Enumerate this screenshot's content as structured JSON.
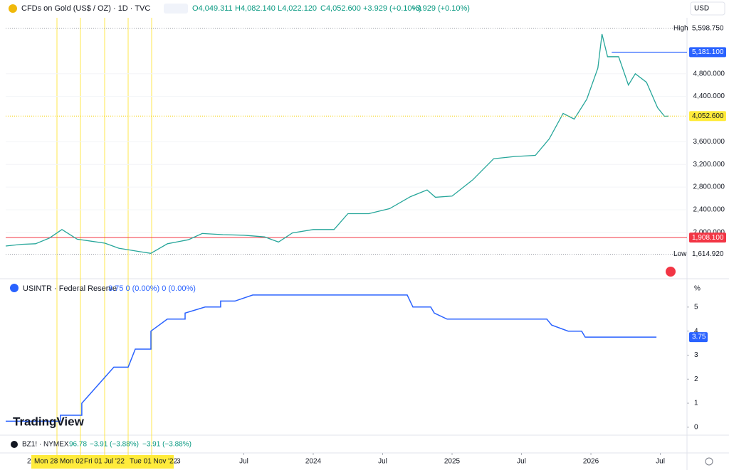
{
  "header": {
    "symbol": "CFDs on Gold (US$ / OZ) · 1D · TVC",
    "open": "O4,049.311",
    "high": "H4,082.140",
    "low": "L4,022.120",
    "close": "C4,052.600",
    "change": "+3.929 (+0.10%)",
    "change2": "+3.929 (+0.10%)",
    "currency": "USD"
  },
  "price_chart": {
    "type": "line",
    "color": "#26a69a",
    "x": [
      2021.785,
      2021.9,
      2022.0,
      2022.1,
      2022.19,
      2022.3,
      2022.5,
      2022.6,
      2022.75,
      2022.83,
      2022.95,
      2023.1,
      2023.2,
      2023.35,
      2023.5,
      2023.65,
      2023.75,
      2023.85,
      2024.0,
      2024.15,
      2024.25,
      2024.4,
      2024.55,
      2024.7,
      2024.82,
      2024.88,
      2025.0,
      2025.15,
      2025.3,
      2025.45,
      2025.6,
      2025.7,
      2025.8,
      2025.88,
      2025.97,
      2026.05,
      2026.08,
      2026.12,
      2026.2,
      2026.27,
      2026.32,
      2026.4,
      2026.48,
      2026.53,
      2026.56
    ],
    "values": [
      1760,
      1790,
      1800,
      1900,
      2050,
      1880,
      1810,
      1720,
      1660,
      1630,
      1800,
      1870,
      1980,
      1960,
      1950,
      1920,
      1830,
      1990,
      2050,
      2050,
      2330,
      2330,
      2420,
      2630,
      2750,
      2620,
      2640,
      2930,
      3300,
      3340,
      3360,
      3650,
      4100,
      4000,
      4350,
      4900,
      5500,
      5100,
      5100,
      4600,
      4800,
      4650,
      4200,
      4050,
      4052.6
    ],
    "xlim": [
      2021.785,
      2026.692
    ],
    "ylim": [
      1270,
      5725
    ],
    "yticks": [
      {
        "value": 2000,
        "label": "2,000.000"
      },
      {
        "value": 2400,
        "label": "2,400.000"
      },
      {
        "value": 2800,
        "label": "2,800.000"
      },
      {
        "value": 3200,
        "label": "3,200.000"
      },
      {
        "value": 3600,
        "label": "3,600.000"
      },
      {
        "value": 4400,
        "label": "4,400.000"
      },
      {
        "value": 4800,
        "label": "4,800.000"
      }
    ],
    "xticks": [
      {
        "value": 2023.5,
        "label": "Jul"
      },
      {
        "value": 2024,
        "label": "2024"
      },
      {
        "value": 2024.5,
        "label": "Jul"
      },
      {
        "value": 2025,
        "label": "2025"
      },
      {
        "value": 2025.5,
        "label": "Jul"
      },
      {
        "value": 2026,
        "label": "2026"
      },
      {
        "value": 2026.5,
        "label": "Jul"
      }
    ],
    "high": {
      "label": "High",
      "value": 5598.75,
      "value_label": "5,598.750"
    },
    "low": {
      "label": "Low",
      "value": 1614.92,
      "value_label": "1,614.920"
    },
    "last": {
      "value": 4052.6,
      "value_label": "4,052.600",
      "color": "#ffeb3b"
    },
    "lines": [
      {
        "value": 5181.1,
        "value_label": "5,181.100",
        "color": "#2962ff"
      },
      {
        "value": 1908.1,
        "value_label": "1,908.100",
        "color": "#f23645"
      }
    ]
  },
  "rate_chart": {
    "type": "line",
    "title": "USINTR · Federal Reserve",
    "legend_values": "3.75 0 (0.00%) 0 (0.00%)",
    "unit": "%",
    "color": "#2962ff",
    "x": [
      2021.785,
      2022.179,
      2022.179,
      2022.333,
      2022.333,
      2022.564,
      2022.667,
      2022.718,
      2022.831,
      2022.831,
      2022.949,
      2023.077,
      2023.077,
      2023.221,
      2023.333,
      2023.333,
      2023.436,
      2023.564,
      2024.677,
      2024.718,
      2024.846,
      2024.872,
      2024.964,
      2025.682,
      2025.718,
      2025.836,
      2025.933,
      2025.959,
      2026.472
    ],
    "values": [
      0.25,
      0.25,
      0.5,
      0.5,
      1.0,
      2.5,
      2.5,
      3.25,
      3.25,
      4.0,
      4.5,
      4.5,
      4.75,
      5.0,
      5.0,
      5.25,
      5.25,
      5.5,
      5.5,
      5.0,
      5.0,
      4.75,
      4.5,
      4.5,
      4.25,
      4.0,
      4.0,
      3.75,
      3.75
    ],
    "ylim": [
      -0.27,
      6.09
    ],
    "yticks": [
      0,
      1,
      2,
      3,
      4,
      5
    ]
  },
  "bottom_pane": {
    "symbol": "BZ1! · NYMEX",
    "value": "96.78",
    "change": "−3.91 (−3.88%)",
    "change2": "−3.91 (−3.88%)"
  },
  "time_axis": {
    "fragments": [
      "2",
      "3"
    ],
    "highlights": [
      "Mon 28",
      "Mon 02",
      "Fri 01 Jul '22",
      "Tue 01 Nov '22"
    ]
  },
  "logo": "TradingView"
}
